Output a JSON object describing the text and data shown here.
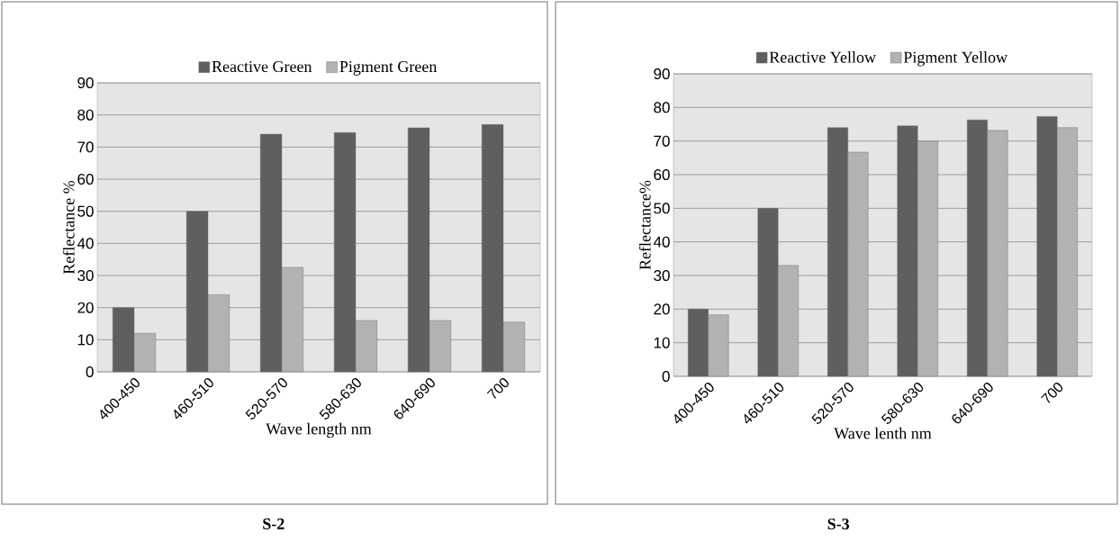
{
  "chart_data": [
    {
      "type": "bar",
      "categories": [
        "400-450",
        "460-510",
        "520-570",
        "580-630",
        "640-690",
        "700"
      ],
      "xlabel": "Wave length nm",
      "ylabel": "Reflectance %",
      "ylim": [
        0,
        90
      ],
      "yticks": [
        0,
        10,
        20,
        30,
        40,
        50,
        60,
        70,
        80,
        90
      ],
      "grid": "y",
      "legend": "top",
      "annotations": [
        "S-2"
      ],
      "series": [
        {
          "name": "Reactive Green",
          "color": "#5f5f5f",
          "values": [
            20,
            50,
            74,
            74.5,
            76,
            77
          ]
        },
        {
          "name": "Pigment Green",
          "color": "#b2b2b2",
          "values": [
            12,
            24,
            32.5,
            16,
            16,
            15.5
          ]
        }
      ]
    },
    {
      "type": "bar",
      "categories": [
        "400-450",
        "460-510",
        "520-570",
        "580-630",
        "640-690",
        "700"
      ],
      "xlabel": "Wave lenth nm",
      "ylabel": "Reflectance%",
      "ylim": [
        0,
        90
      ],
      "yticks": [
        0,
        10,
        20,
        30,
        40,
        50,
        60,
        70,
        80,
        90
      ],
      "grid": "y",
      "legend": "top",
      "annotations": [
        "S-3"
      ],
      "series": [
        {
          "name": "Reactive Yellow",
          "color": "#5f5f5f",
          "values": [
            20,
            50,
            74,
            74.5,
            76.3,
            77.3
          ]
        },
        {
          "name": "Pigment Yellow",
          "color": "#b2b2b2",
          "values": [
            18.3,
            33,
            66.7,
            70,
            73.2,
            74
          ]
        }
      ]
    }
  ]
}
